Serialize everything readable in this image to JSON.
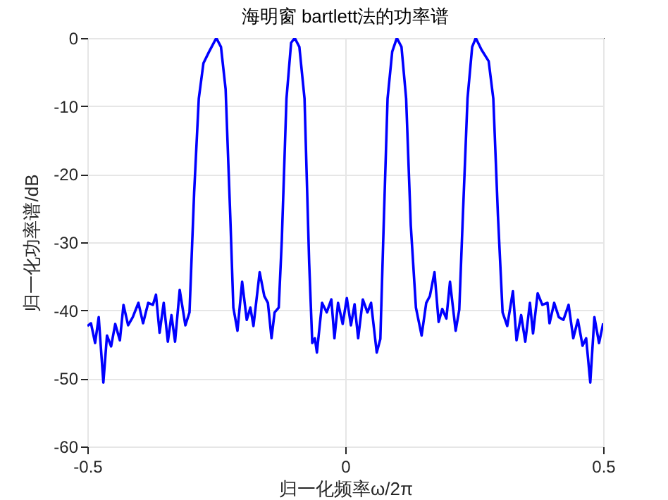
{
  "chart_data": {
    "type": "line",
    "title": "海明窗 bartlett法的功率谱",
    "xlabel": "归一化频率ω/2π",
    "ylabel": "归一化功率谱/dB",
    "xlim": [
      -0.5,
      0.5
    ],
    "xticks": [
      -0.5,
      0,
      0.5
    ],
    "ylim": [
      -60,
      0
    ],
    "yticks": [
      -60,
      -50,
      -40,
      -30,
      -20,
      -10,
      0
    ],
    "grid": true,
    "marker": "none",
    "line_style": "solid",
    "x": [
      -0.5,
      -0.493,
      -0.485,
      -0.478,
      -0.469,
      -0.462,
      -0.454,
      -0.446,
      -0.437,
      -0.43,
      -0.421,
      -0.412,
      -0.401,
      -0.392,
      -0.382,
      -0.373,
      -0.367,
      -0.36,
      -0.352,
      -0.344,
      -0.337,
      -0.33,
      -0.321,
      -0.31,
      -0.302,
      -0.293,
      -0.284,
      -0.275,
      -0.264,
      -0.25,
      -0.241,
      -0.232,
      -0.223,
      -0.217,
      -0.209,
      -0.2,
      -0.191,
      -0.184,
      -0.178,
      -0.166,
      -0.157,
      -0.15,
      -0.143,
      -0.137,
      -0.129,
      -0.123,
      -0.114,
      -0.105,
      -0.098,
      -0.089,
      -0.079,
      -0.07,
      -0.064,
      -0.059,
      -0.055,
      -0.045,
      -0.036,
      -0.027,
      -0.021,
      -0.014,
      -0.005,
      0.003,
      0.011,
      0.018,
      0.025,
      0.034,
      0.043,
      0.05,
      0.061,
      0.068,
      0.075,
      0.082,
      0.091,
      0.1,
      0.109,
      0.118,
      0.127,
      0.137,
      0.148,
      0.157,
      0.164,
      0.173,
      0.181,
      0.188,
      0.196,
      0.203,
      0.214,
      0.221,
      0.228,
      0.237,
      0.246,
      0.253,
      0.264,
      0.278,
      0.287,
      0.296,
      0.305,
      0.314,
      0.325,
      0.332,
      0.341,
      0.349,
      0.358,
      0.364,
      0.373,
      0.382,
      0.392,
      0.396,
      0.405,
      0.414,
      0.423,
      0.433,
      0.442,
      0.451,
      0.46,
      0.467,
      0.475,
      0.483,
      0.492,
      0.5
    ],
    "series": [
      {
        "color": "#0000ff",
        "values": [
          -42.3,
          -41.9,
          -44.8,
          -41,
          -50.6,
          -43.7,
          -45.3,
          -42,
          -44.4,
          -39.2,
          -42.2,
          -41,
          -38.9,
          -41.9,
          -38.9,
          -39.2,
          -37.7,
          -43.3,
          -38.9,
          -44.6,
          -40.7,
          -44.6,
          -37,
          -42.2,
          -40.3,
          -22.7,
          -8.9,
          -3.7,
          -2,
          0,
          -1.3,
          -7.5,
          -26.1,
          -39.6,
          -43,
          -35.8,
          -41.4,
          -39.6,
          -42.3,
          -34.4,
          -37.9,
          -38.9,
          -44.1,
          -40.3,
          -39.6,
          -29.6,
          -8.9,
          -0.7,
          0,
          -1.3,
          -8.9,
          -33,
          -44.8,
          -44.1,
          -46.2,
          -38.9,
          -40.3,
          -38.4,
          -44.1,
          -38.9,
          -42,
          -38.2,
          -42.2,
          -39.1,
          -44.1,
          -38.4,
          -40.3,
          -38.9,
          -46.2,
          -44.2,
          -26.1,
          -8.9,
          -2,
          0,
          -1.3,
          -8.9,
          -27.5,
          -39.6,
          -43.7,
          -38.9,
          -37.9,
          -34.4,
          -41.7,
          -39.8,
          -41.2,
          -35.8,
          -43,
          -39.9,
          -26.1,
          -8.9,
          -1.3,
          0,
          -1.7,
          -3.4,
          -8.9,
          -26.1,
          -40.3,
          -42.3,
          -37.2,
          -44.4,
          -40.7,
          -44.6,
          -38.9,
          -43.4,
          -37.5,
          -39.2,
          -38.9,
          -41.9,
          -38.9,
          -41,
          -41.4,
          -39.2,
          -44.1,
          -41.4,
          -45.2,
          -44.1,
          -50.6,
          -41,
          -44.8,
          -41.9
        ]
      }
    ]
  }
}
